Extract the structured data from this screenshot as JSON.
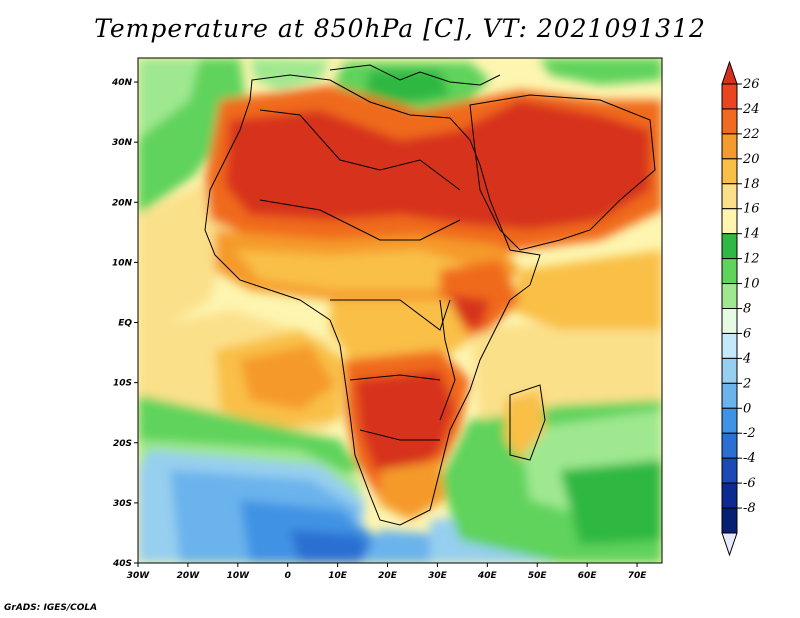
{
  "title": "Temperature at 850hPa [C], VT: 2021091312",
  "credit": "GrADS: IGES/COLA",
  "map": {
    "lon_range": [
      -30,
      75
    ],
    "lat_range": [
      -40,
      44
    ],
    "lon_ticks": [
      {
        "lon": -30,
        "label": "30W"
      },
      {
        "lon": -20,
        "label": "20W"
      },
      {
        "lon": -10,
        "label": "10W"
      },
      {
        "lon": 0,
        "label": "0"
      },
      {
        "lon": 10,
        "label": "10E"
      },
      {
        "lon": 20,
        "label": "20E"
      },
      {
        "lon": 30,
        "label": "30E"
      },
      {
        "lon": 40,
        "label": "40E"
      },
      {
        "lon": 50,
        "label": "50E"
      },
      {
        "lon": 60,
        "label": "60E"
      },
      {
        "lon": 70,
        "label": "70E"
      }
    ],
    "lat_ticks": [
      {
        "lat": 40,
        "label": "40N"
      },
      {
        "lat": 30,
        "label": "30N"
      },
      {
        "lat": 20,
        "label": "20N"
      },
      {
        "lat": 10,
        "label": "10N"
      },
      {
        "lat": 0,
        "label": "EQ"
      },
      {
        "lat": -10,
        "label": "10S"
      },
      {
        "lat": -20,
        "label": "20S"
      },
      {
        "lat": -30,
        "label": "30S"
      },
      {
        "lat": -40,
        "label": "40S"
      }
    ]
  },
  "colorbar": {
    "labels": [
      "26",
      "24",
      "22",
      "20",
      "18",
      "16",
      "14",
      "12",
      "10",
      "8",
      "6",
      "4",
      "2",
      "0",
      "-2",
      "-4",
      "-6",
      "-8"
    ],
    "colors": [
      "#d7301f",
      "#e9461f",
      "#f06a1f",
      "#f59a2c",
      "#f9bf46",
      "#fbe08a",
      "#fdf5b0",
      "#2fb843",
      "#5fd35c",
      "#9fe890",
      "#e7fbe3",
      "#c6e9f9",
      "#96cfef",
      "#6ab3ec",
      "#3f93e4",
      "#2b6fd2",
      "#1b49b5",
      "#0d2a92",
      "#082073",
      "#e8e8ff"
    ]
  }
}
